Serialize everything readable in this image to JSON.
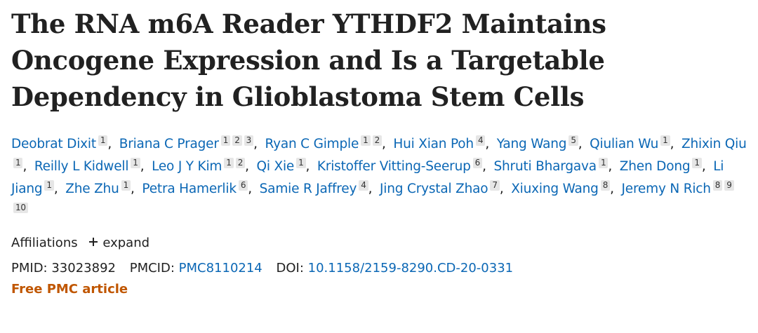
{
  "title": "The RNA m6A Reader YTHDF2 Maintains Oncogene Expression and Is a Targetable Dependency in Glioblastoma Stem Cells",
  "authors": [
    {
      "name": "Deobrat Dixit",
      "affiliations": [
        1
      ]
    },
    {
      "name": "Briana C Prager",
      "affiliations": [
        1,
        2,
        3
      ]
    },
    {
      "name": "Ryan C Gimple",
      "affiliations": [
        1,
        2
      ]
    },
    {
      "name": "Hui Xian Poh",
      "affiliations": [
        4
      ]
    },
    {
      "name": "Yang Wang",
      "affiliations": [
        5
      ]
    },
    {
      "name": "Qiulian Wu",
      "affiliations": [
        1
      ]
    },
    {
      "name": "Zhixin Qiu",
      "affiliations": [
        1
      ]
    },
    {
      "name": "Reilly L Kidwell",
      "affiliations": [
        1
      ]
    },
    {
      "name": "Leo J Y Kim",
      "affiliations": [
        1,
        2
      ]
    },
    {
      "name": "Qi Xie",
      "affiliations": [
        1
      ]
    },
    {
      "name": "Kristoffer Vitting-Seerup",
      "affiliations": [
        6
      ]
    },
    {
      "name": "Shruti Bhargava",
      "affiliations": [
        1
      ]
    },
    {
      "name": "Zhen Dong",
      "affiliations": [
        1
      ]
    },
    {
      "name": "Li Jiang",
      "affiliations": [
        1
      ]
    },
    {
      "name": "Zhe Zhu",
      "affiliations": [
        1
      ]
    },
    {
      "name": "Petra Hamerlik",
      "affiliations": [
        6
      ]
    },
    {
      "name": "Samie R Jaffrey",
      "affiliations": [
        4
      ]
    },
    {
      "name": "Jing Crystal Zhao",
      "affiliations": [
        7
      ]
    },
    {
      "name": "Xiuxing Wang",
      "affiliations": [
        8
      ]
    },
    {
      "name": "Jeremy N Rich",
      "affiliations": [
        8,
        9,
        10
      ]
    }
  ],
  "affiliations": {
    "label": "Affiliations",
    "toggle": "expand"
  },
  "identifiers": {
    "pmid_label": "PMID:",
    "pmid": "33023892",
    "pmcid_label": "PMCID:",
    "pmcid": "PMC8110214",
    "doi_label": "DOI:",
    "doi": "10.1158/2159-8290.CD-20-0331"
  },
  "free_article": "Free PMC article"
}
